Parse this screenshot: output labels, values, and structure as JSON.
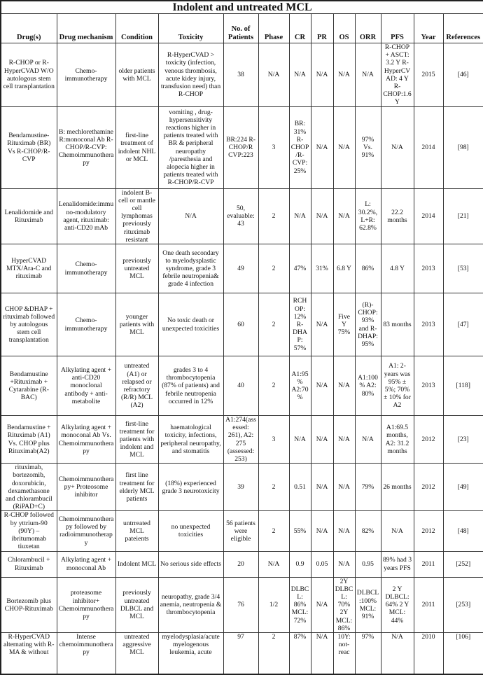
{
  "title": "Indolent and untreated MCL",
  "columns": [
    "Drug(s)",
    "Drug mechanism",
    "Condition",
    "Toxicity",
    "No. of Patients",
    "Phase",
    "CR",
    "PR",
    "OS",
    "ORR",
    "PFS",
    "Year",
    "References"
  ],
  "rows": [
    [
      "R-CHOP or R-HyperCVAD W/O autologous stem cell transplantation",
      "Chemo-immunotherapy",
      "older patients with MCL",
      "R-HyperCVAD > toxicity (infection, venous thrombosis, acute kidey injury, transfusion need) than R-CHOP",
      "38",
      "N/A",
      "N/A",
      "N/A",
      "N/A",
      "N/A",
      "R-CHOP + ASCT: 3.2 Y R-HyperCVAD: 4 Y R-CHOP:1.6 Y",
      "2015",
      "[46]"
    ],
    [
      "Bendamustine-Rituximab (BR) Vs R-CHOP/R-CVP",
      "B: mechlorethamine R:monoconal Ab R-CHOP/R-CVP: Chemoimmunotherapy",
      "first-line treatment of indolent NHL or MCL",
      "vomiting , drug-hypersensitivity reactions higher in patients treated with BR & peripheral neuropathy /paresthesia and alopecia higher in patients treated with R-CHOP/R-CVP",
      "BR:224 R-CHOP/R CVP:223",
      "3",
      "BR: 31% R-CHOP/R-CVP:25%",
      "N/A",
      "N/A",
      "97% Vs. 91%",
      "N/A",
      "2014",
      "[98]"
    ],
    [
      "Lenalidomide and Rituximab",
      "Lenalidomide:immuno-modulatory agent, rituximab: anti-CD20 mAb",
      "indolent B-cell or mantle cell lymphomas previously rituximab resistant",
      "N/A",
      "50, evaluable: 43",
      "2",
      "N/A",
      "N/A",
      "N/A",
      "L: 30.2%, L+R: 62.8%",
      "22.2 months",
      "2014",
      "[21]"
    ],
    [
      "HyperCVAD MTX/Ara-C and rituximab",
      "Chemo-immunotherapy",
      "previously untreated MCL",
      "One death secondary to myelodysplastic syndrome, grade 3 febrile neutropenia& grade 4 infection",
      "49",
      "2",
      "47%",
      "31%",
      "6.8 Y",
      "86%",
      "4.8 Y",
      "2013",
      "[53]"
    ],
    [
      "CHOP &DHAP + rituximab followed by autologous stem cell transplantation",
      "Chemo-immunotherapy",
      "younger patients with MCL",
      "No toxic death or unexpected toxicities",
      "60",
      "2",
      "RCHOP: 12% R-DHAP: 57%",
      "N/A",
      "Five Y 75%",
      "(R)-CHOP:93% and R-DHAP:95%",
      "83 months",
      "2013",
      "[47]"
    ],
    [
      "Bendamustine +Rituximab + Cytarabine (R-BAC)",
      "Alkylating agent + anti-CD20 monoclonal antibody + anti-metabolite",
      "untreated (A1) or relapsed or refractory (R/R) MCL (A2)",
      "grades 3 to 4 thrombocytopenia (87% of patients) and febrile neutropenia occurred in 12%",
      "40",
      "2",
      "A1:95% A2:70%",
      "N/A",
      "N/A",
      "A1:100% A2: 80%",
      "A1: 2-years was 95% ± 5%; 70% ± 10% for A2",
      "2013",
      "[118]"
    ],
    [
      "Bendamustine + Rituximab (A1) Vs. CHOP plus Rituximab(A2)",
      "Alkylating agent + monoconal Ab Vs. Chemoimmunotherapy",
      "first-line treatment for patients with indolent and MCL",
      "haematological toxicity, infections, peripheral neuropathy, and stomatitis",
      "A1:274(assessed: 261), A2: 275 (assessed: 253)",
      "3",
      "N/A",
      "N/A",
      "N/A",
      "N/A",
      "A1:69.5 months, A2: 31.2 months",
      "2012",
      "[23]"
    ],
    [
      "rituximab, bortezomib, doxorubicin, dexamethasone and chlorambucil (RiPAD+C)",
      "Chemoimmunotherapy+ Proteosome inhibitor",
      "first line treatment for elderly MCL patients",
      "(18%) experienced grade 3 neurotoxicity",
      "39",
      "2",
      "0.51",
      "N/A",
      "N/A",
      "79%",
      "26 months",
      "2012",
      "[49]"
    ],
    [
      "R-CHOP followed by yttrium-90 (90Y) –ibritumomab tiuxetan",
      "Chemoimmunotherapy followed by radioimmunotherapy",
      "untrreated MCL pateients",
      "no unexpected toxicities",
      "56 patients were eligible",
      "2",
      "55%",
      "N/A",
      "N/A",
      "82%",
      "N/A",
      "2012",
      "[48]"
    ],
    [
      "Chlorambucil + Rituximab",
      "Alkylating agent + monoconal Ab",
      "Indolent MCL",
      "No serious side effects",
      "20",
      "N/A",
      "0.9",
      "0.05",
      "N/A",
      "0.95",
      "89% had 3 years PFS",
      "2011",
      "[252]"
    ],
    [
      "Bortezomib plus CHOP-Rituximab",
      "proteasome inhibitor+ Chemoimmunotherapy",
      "previously untreated DLBCL and MCL",
      "neuropathy, grade 3/4 anemia, neutropenia & thrombocytopenia",
      "76",
      "1/2",
      "DLBCL: 86% MCL:72%",
      "N/A",
      "2Y DLBCL: 70% 2Y MCL:86%",
      "DLBCL:100% MCL: 91%",
      "2 Y DLBCL: 64% 2 Y MCL: 44%",
      "2011",
      "[253]"
    ],
    [
      "R-HyperCVAD alternating with R-MA & without",
      "Intense chemoimmunotherapy",
      "untreated aggressive MCL",
      "myelodysplasia/acute myelogenous leukemia, acute",
      "97",
      "2",
      "87%",
      "N/A",
      "10Y: not-reac",
      "97%",
      "N/A",
      "2010",
      "[106]"
    ]
  ]
}
